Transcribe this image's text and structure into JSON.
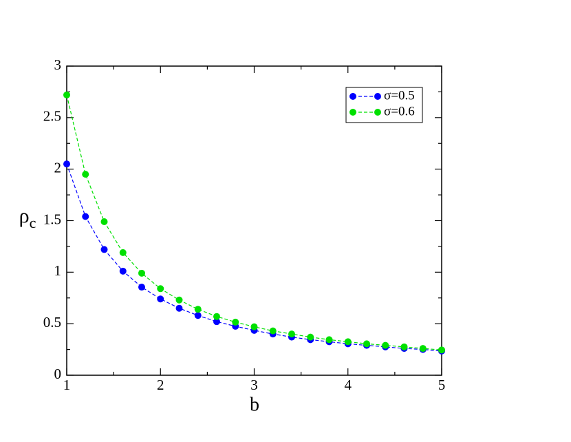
{
  "chart_data": {
    "type": "line",
    "xlabel": "b",
    "ylabel": "ρ",
    "ylabel_subscript": "c",
    "x": [
      1,
      1.2,
      1.4,
      1.6,
      1.8,
      2,
      2.2,
      2.4,
      2.6,
      2.8,
      3,
      3.2,
      3.4,
      3.6,
      3.8,
      4,
      4.2,
      4.4,
      4.6,
      4.8,
      5
    ],
    "series": [
      {
        "name": "σ=0.5",
        "color": "#0000ff",
        "values": [
          2.05,
          1.54,
          1.22,
          1.01,
          0.855,
          0.74,
          0.65,
          0.58,
          0.52,
          0.475,
          0.435,
          0.4,
          0.37,
          0.345,
          0.325,
          0.305,
          0.29,
          0.275,
          0.26,
          0.25,
          0.235
        ]
      },
      {
        "name": "σ=0.6",
        "color": "#00e000",
        "values": [
          2.72,
          1.95,
          1.49,
          1.19,
          0.99,
          0.84,
          0.73,
          0.64,
          0.57,
          0.515,
          0.47,
          0.43,
          0.4,
          0.37,
          0.345,
          0.325,
          0.305,
          0.29,
          0.275,
          0.26,
          0.245
        ]
      }
    ],
    "xlim": [
      1,
      5
    ],
    "xticks": [
      1,
      2,
      3,
      4,
      5
    ],
    "xminorticks": [
      1.5,
      2.5,
      3.5,
      4.5
    ],
    "ylim": [
      0,
      3
    ],
    "yticks": [
      0,
      0.5,
      1,
      1.5,
      2,
      2.5,
      3
    ],
    "yminorticks": [
      0.25,
      0.75,
      1.25,
      1.75,
      2.25,
      2.75
    ],
    "legend": "upper-right",
    "grid": false
  }
}
